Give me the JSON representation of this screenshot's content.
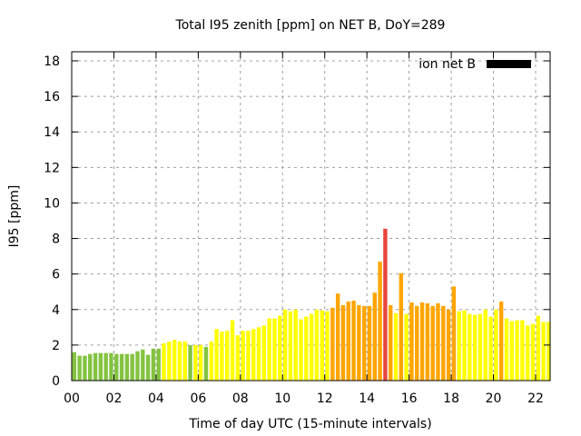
{
  "chart_data": {
    "type": "bar",
    "title": "Total I95 zenith [ppm] on NET B, DoY=289",
    "xlabel": "Time of day UTC (15-minute intervals)",
    "ylabel": "I95 [ppm]",
    "xlim": [
      0,
      22.7
    ],
    "ylim": [
      0,
      18.5
    ],
    "x_ticks": [
      "00",
      "02",
      "04",
      "06",
      "08",
      "10",
      "12",
      "14",
      "16",
      "18",
      "20",
      "22"
    ],
    "x_tick_values": [
      0,
      2,
      4,
      6,
      8,
      10,
      12,
      14,
      16,
      18,
      20,
      22
    ],
    "y_ticks": [
      "0",
      "2",
      "4",
      "6",
      "8",
      "10",
      "12",
      "14",
      "16",
      "18"
    ],
    "y_tick_values": [
      0,
      2,
      4,
      6,
      8,
      10,
      12,
      14,
      16,
      18
    ],
    "grid": true,
    "legend": {
      "position": "top-right",
      "entries": [
        {
          "label": "ion net B",
          "color": "#000000"
        }
      ]
    },
    "interval_hours": 0.25,
    "colors": {
      "green": "#83c341",
      "yellow": "#ffff00",
      "orange": "#ffa500",
      "red": "#e8453c"
    },
    "values": [
      1.6,
      1.4,
      1.4,
      1.5,
      1.55,
      1.55,
      1.55,
      1.55,
      1.5,
      1.5,
      1.5,
      1.5,
      1.65,
      1.75,
      1.45,
      1.8,
      1.8,
      2.1,
      2.2,
      2.3,
      2.2,
      2.2,
      2.0,
      2.0,
      2.0,
      1.9,
      2.2,
      2.9,
      2.75,
      2.8,
      3.4,
      2.55,
      2.8,
      2.8,
      2.9,
      3.0,
      3.1,
      3.5,
      3.5,
      3.65,
      4.0,
      3.9,
      4.0,
      3.45,
      3.6,
      3.75,
      4.0,
      3.95,
      3.9,
      4.1,
      4.9,
      4.25,
      4.45,
      4.5,
      4.25,
      4.2,
      4.2,
      4.95,
      6.7,
      8.55,
      4.25,
      3.8,
      6.05,
      3.75,
      4.4,
      4.2,
      4.4,
      4.35,
      4.2,
      4.35,
      4.2,
      4.0,
      5.3,
      3.9,
      3.95,
      3.75,
      3.7,
      3.75,
      4.0,
      3.6,
      4.0,
      4.45,
      3.5,
      3.35,
      3.4,
      3.4,
      3.1,
      3.2,
      3.65,
      3.3,
      3.3
    ],
    "bar_colors": [
      "green",
      "green",
      "green",
      "green",
      "green",
      "green",
      "green",
      "green",
      "green",
      "green",
      "green",
      "green",
      "green",
      "green",
      "green",
      "green",
      "green",
      "yellow",
      "yellow",
      "yellow",
      "yellow",
      "yellow",
      "green",
      "yellow",
      "yellow",
      "green",
      "yellow",
      "yellow",
      "yellow",
      "yellow",
      "yellow",
      "yellow",
      "yellow",
      "yellow",
      "yellow",
      "yellow",
      "yellow",
      "yellow",
      "yellow",
      "yellow",
      "yellow",
      "yellow",
      "yellow",
      "yellow",
      "yellow",
      "yellow",
      "yellow",
      "yellow",
      "yellow",
      "orange",
      "orange",
      "orange",
      "orange",
      "orange",
      "orange",
      "orange",
      "orange",
      "orange",
      "orange",
      "red",
      "orange",
      "yellow",
      "orange",
      "yellow",
      "orange",
      "orange",
      "orange",
      "orange",
      "orange",
      "orange",
      "orange",
      "orange",
      "orange",
      "yellow",
      "yellow",
      "yellow",
      "yellow",
      "yellow",
      "yellow",
      "yellow",
      "yellow",
      "orange",
      "yellow",
      "yellow",
      "yellow",
      "yellow",
      "yellow",
      "yellow",
      "yellow",
      "yellow",
      "yellow"
    ]
  }
}
